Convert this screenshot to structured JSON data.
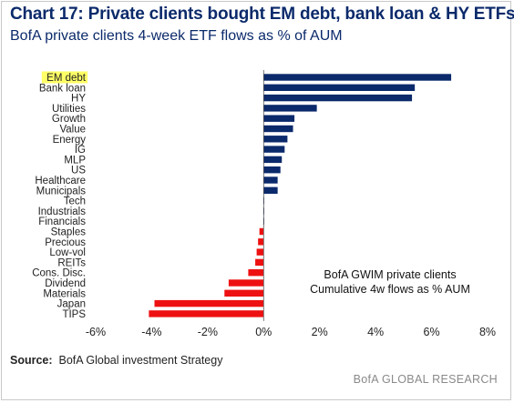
{
  "header": {
    "title": "Chart 17: Private clients bought EM debt, bank loan & HY ETFs",
    "subtitle": "BofA private clients 4-week ETF flows as % of AUM"
  },
  "source": {
    "label": "Source:",
    "text": "BofA Global investment Strategy"
  },
  "footer": {
    "brand": "BofA GLOBAL RESEARCH"
  },
  "chart_data": {
    "type": "bar",
    "orientation": "horizontal",
    "categories": [
      "EM debt",
      "Bank loan",
      "HY",
      "Utilities",
      "Growth",
      "Value",
      "Energy",
      "IG",
      "MLP",
      "US",
      "Healthcare",
      "Municipals",
      "Tech",
      "Industrials",
      "Financials",
      "Staples",
      "Precious",
      "Low-vol",
      "REITs",
      "Cons. Disc.",
      "Dividend",
      "Materials",
      "Japan",
      "TIPS"
    ],
    "values": [
      6.7,
      5.4,
      5.3,
      1.9,
      1.1,
      1.05,
      0.85,
      0.75,
      0.65,
      0.6,
      0.5,
      0.5,
      0.02,
      0.02,
      0.02,
      -0.15,
      -0.2,
      -0.25,
      -0.3,
      -0.55,
      -1.25,
      -1.4,
      -3.9,
      -4.1
    ],
    "xlim": [
      -6,
      8
    ],
    "xticks": [
      -6,
      -4,
      -2,
      0,
      2,
      4,
      6,
      8
    ],
    "tick_suffix": "%",
    "highlighted_category": "EM debt",
    "annotation": [
      "BofA GWIM private clients",
      "Cumulative 4w flows as % AUM"
    ],
    "colors": {
      "positive": "#0b2a6b",
      "negative": "#ee1111",
      "highlight": "#ffff66",
      "axis": "#555555"
    }
  }
}
